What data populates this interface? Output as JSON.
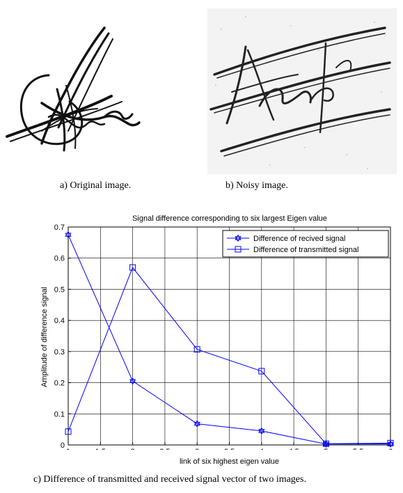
{
  "captions": {
    "a": "a) Original image.",
    "b": "b) Noisy image.",
    "c": "c) Difference of transmitted and received signal vector of two images."
  },
  "chart_data": {
    "type": "line",
    "title": "Signal difference corresponding to six largest Eigen value",
    "xlabel": "link of six highest eigen value",
    "ylabel": "Amplitude of difference signal",
    "xlim": [
      1,
      6
    ],
    "ylim": [
      0,
      0.7
    ],
    "xticks": [
      "1",
      "1.5",
      "2",
      "2.5",
      "3",
      "3.5",
      "4",
      "4.5",
      "5",
      "5.5",
      "6"
    ],
    "yticks": [
      "0",
      "0.1",
      "0.2",
      "0.3",
      "0.4",
      "0.5",
      "0.6",
      "0.7"
    ],
    "grid": true,
    "legend_position": "top-right",
    "line_color": "#0000ff",
    "x": [
      1,
      2,
      3,
      4,
      5,
      6
    ],
    "series": [
      {
        "name": "Difference of recived signal",
        "marker": "hexagram",
        "values": [
          0.675,
          0.205,
          0.068,
          0.045,
          0.003,
          0.003
        ]
      },
      {
        "name": "Difference of transmitted signal",
        "marker": "square",
        "values": [
          0.043,
          0.57,
          0.307,
          0.237,
          0.004,
          0.006
        ]
      }
    ]
  }
}
